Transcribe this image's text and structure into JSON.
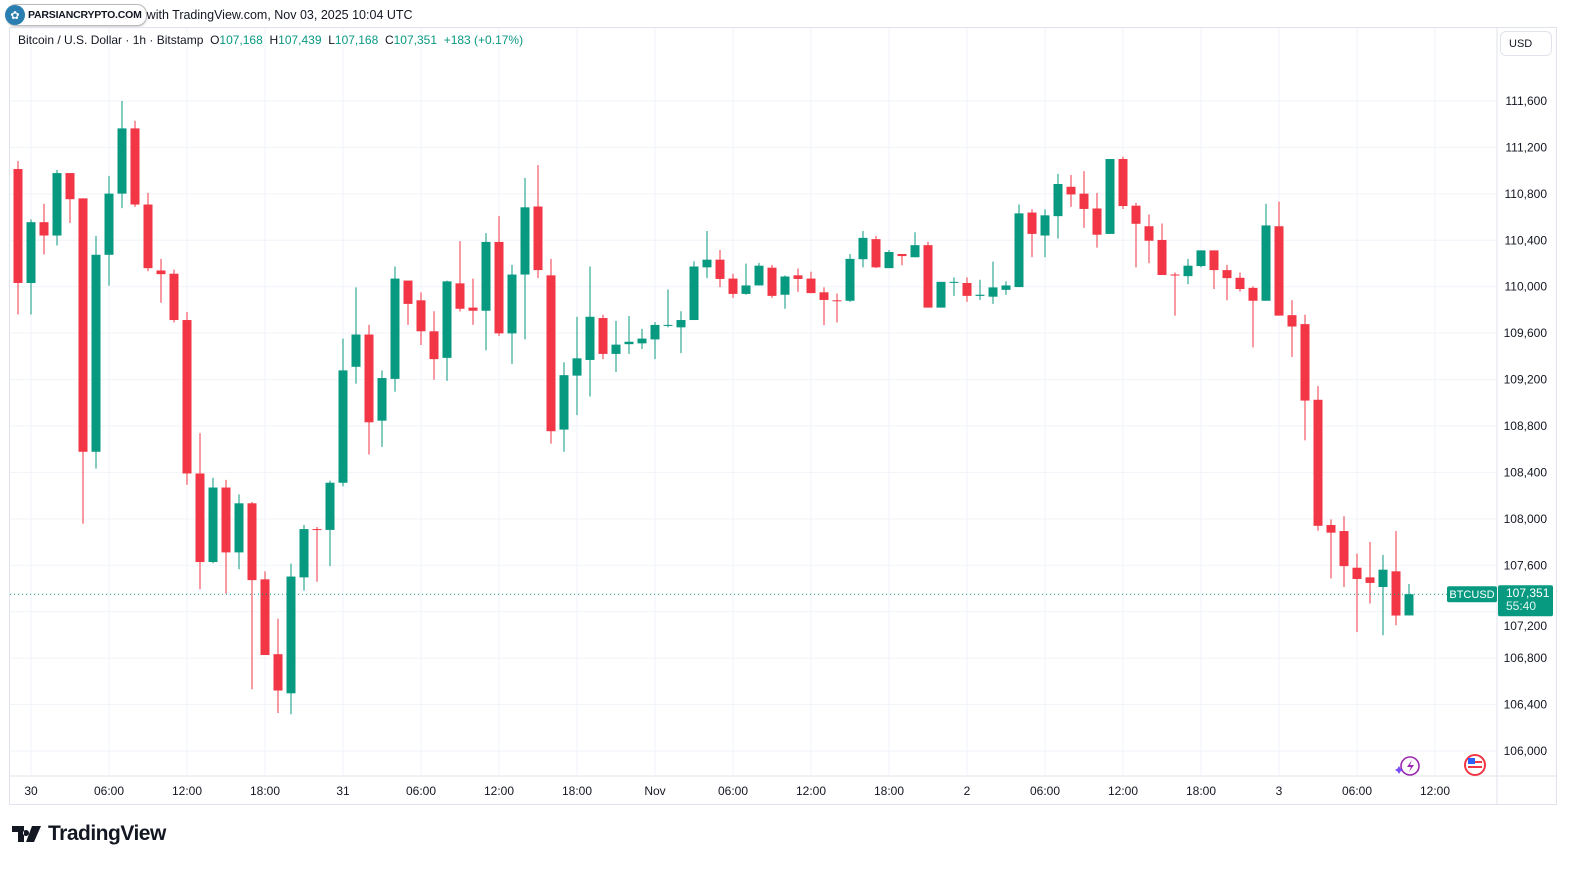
{
  "header": {
    "logo_text": "PARSIANCRYPTO.COM",
    "published_text": "with TradingView.com, Nov 03, 2025 10:04 UTC"
  },
  "legend": {
    "symbol": "Bitcoin / U.S. Dollar · 1h · Bitstamp",
    "open_label": "O",
    "open": "107,168",
    "high_label": "H",
    "high": "107,439",
    "low_label": "L",
    "low": "107,168",
    "close_label": "C",
    "close": "107,351",
    "change": "+183 (+0.17%)"
  },
  "currency_button": "USD",
  "price_tag": {
    "symbol": "BTCUSD",
    "price": "107,351",
    "countdown": "55:40"
  },
  "footer": {
    "brand": "TradingView"
  },
  "icons": [
    "tradingview-logo-icon",
    "lightning-icon",
    "us-flag-icon"
  ],
  "colors": {
    "up": "#089981",
    "down": "#F23645",
    "grid": "#f0f3fa",
    "text": "#131722"
  },
  "chart_data": {
    "type": "candlestick",
    "interval": "1h",
    "ylim": [
      106000,
      111600
    ],
    "y_ticks": [
      "106,000",
      "106,400",
      "106,800",
      "107,200",
      "107,600",
      "108,000",
      "108,400",
      "108,800",
      "109,200",
      "109,600",
      "110,000",
      "110,400",
      "110,800",
      "111,200",
      "111,600"
    ],
    "x_ticks": [
      "30",
      "06:00",
      "12:00",
      "18:00",
      "31",
      "06:00",
      "12:00",
      "18:00",
      "Nov",
      "06:00",
      "12:00",
      "18:00",
      "2",
      "06:00",
      "12:00",
      "18:00",
      "3",
      "06:00",
      "12:00"
    ],
    "grid": true,
    "last_price": 107351,
    "ohlc_columns": [
      "open",
      "high",
      "low",
      "close"
    ],
    "ohlc": [
      [
        111014,
        111083,
        109761,
        110032
      ],
      [
        110032,
        110580,
        109761,
        110556
      ],
      [
        110556,
        110715,
        110278,
        110441
      ],
      [
        110441,
        111007,
        110355,
        110979
      ],
      [
        110979,
        110979,
        110549,
        110754
      ],
      [
        110761,
        110761,
        107958,
        108578
      ],
      [
        108578,
        110438,
        108433,
        110275
      ],
      [
        110275,
        110955,
        110008,
        110802
      ],
      [
        110802,
        111600,
        110677,
        111364
      ],
      [
        111364,
        111430,
        110688,
        110708
      ],
      [
        110708,
        110809,
        110133,
        110160
      ],
      [
        110140,
        110240,
        109862,
        110108
      ],
      [
        110112,
        110147,
        109692,
        109713
      ],
      [
        109713,
        109782,
        108294,
        108391
      ],
      [
        108391,
        108738,
        107392,
        107628
      ],
      [
        107628,
        108353,
        107618,
        108270
      ],
      [
        108270,
        108336,
        107357,
        107711
      ],
      [
        107711,
        108211,
        107566,
        108134
      ],
      [
        108134,
        108145,
        106532,
        107472
      ],
      [
        107479,
        107548,
        106827,
        106827
      ],
      [
        106834,
        107139,
        106327,
        106521
      ],
      [
        106497,
        107614,
        106317,
        107503
      ],
      [
        107496,
        107947,
        107382,
        107912
      ],
      [
        107912,
        107930,
        107458,
        107905
      ],
      [
        107905,
        108329,
        107593,
        108311
      ],
      [
        108311,
        109553,
        108280,
        109279
      ],
      [
        109310,
        109994,
        109165,
        109588
      ],
      [
        109588,
        109671,
        108554,
        108832
      ],
      [
        108846,
        109279,
        108620,
        109213
      ],
      [
        109206,
        110174,
        109095,
        110070
      ],
      [
        110053,
        110053,
        109671,
        109852
      ],
      [
        109883,
        109952,
        109498,
        109616
      ],
      [
        109616,
        109789,
        109199,
        109376
      ],
      [
        109387,
        110053,
        109189,
        110046
      ],
      [
        110029,
        110393,
        109786,
        109810
      ],
      [
        109820,
        110070,
        109671,
        109793
      ],
      [
        109793,
        110462,
        109453,
        110386
      ],
      [
        110386,
        110608,
        109574,
        109598
      ],
      [
        109598,
        110188,
        109335,
        110105
      ],
      [
        110105,
        110937,
        109546,
        110684
      ],
      [
        110691,
        111048,
        110074,
        110143
      ],
      [
        110098,
        110240,
        108648,
        108755
      ],
      [
        108769,
        109349,
        108578,
        109238
      ],
      [
        109234,
        109741,
        108894,
        109383
      ],
      [
        109369,
        110174,
        109054,
        109741
      ],
      [
        109730,
        109758,
        109376,
        109421
      ],
      [
        109421,
        109706,
        109265,
        109501
      ],
      [
        109505,
        109748,
        109421,
        109526
      ],
      [
        109512,
        109637,
        109463,
        109553
      ],
      [
        109546,
        109696,
        109376,
        109671
      ],
      [
        109664,
        109976,
        109650,
        109671
      ],
      [
        109650,
        109789,
        109428,
        109713
      ],
      [
        109713,
        110219,
        109713,
        110174
      ],
      [
        110167,
        110480,
        110074,
        110233
      ],
      [
        110233,
        110316,
        109997,
        110067
      ],
      [
        110070,
        110112,
        109904,
        109938
      ],
      [
        109938,
        110199,
        109931,
        110011
      ],
      [
        110011,
        110205,
        110011,
        110181
      ],
      [
        110164,
        110188,
        109904,
        109921
      ],
      [
        109931,
        110098,
        109810,
        110088
      ],
      [
        110098,
        110157,
        109956,
        110067
      ],
      [
        110070,
        110129,
        109945,
        109945
      ],
      [
        109952,
        109994,
        109668,
        109886
      ],
      [
        109883,
        109942,
        109692,
        109879
      ],
      [
        109879,
        110282,
        109869,
        110240
      ],
      [
        110237,
        110480,
        110167,
        110421
      ],
      [
        110410,
        110438,
        110160,
        110167
      ],
      [
        110160,
        110316,
        110160,
        110299
      ],
      [
        110282,
        110282,
        110185,
        110264
      ],
      [
        110254,
        110469,
        110254,
        110358
      ],
      [
        110358,
        110386,
        109820,
        109820
      ],
      [
        109820,
        110042,
        109820,
        110042
      ],
      [
        110039,
        110081,
        109921,
        110042
      ],
      [
        110032,
        110081,
        109869,
        109921
      ],
      [
        109921,
        110060,
        109886,
        109931
      ],
      [
        109914,
        110216,
        109852,
        109994
      ],
      [
        109973,
        110046,
        109931,
        110011
      ],
      [
        109997,
        110708,
        109997,
        110632
      ],
      [
        110639,
        110667,
        110254,
        110455
      ],
      [
        110441,
        110667,
        110254,
        110615
      ],
      [
        110608,
        110972,
        110414,
        110885
      ],
      [
        110861,
        110962,
        110688,
        110795
      ],
      [
        110802,
        110996,
        110507,
        110670
      ],
      [
        110674,
        110809,
        110337,
        110448
      ],
      [
        110455,
        111100,
        110455,
        111100
      ],
      [
        111100,
        111121,
        110670,
        110695
      ],
      [
        110698,
        110722,
        110167,
        110542
      ],
      [
        110521,
        110622,
        110202,
        110396
      ],
      [
        110403,
        110545,
        110101,
        110101
      ],
      [
        110105,
        110122,
        109751,
        110101
      ],
      [
        110091,
        110240,
        110022,
        110181
      ],
      [
        110178,
        110313,
        110167,
        110313
      ],
      [
        110313,
        110313,
        109980,
        110143
      ],
      [
        110143,
        110188,
        109883,
        110074
      ],
      [
        110077,
        110122,
        109959,
        109980
      ],
      [
        109990,
        110004,
        109477,
        109879
      ],
      [
        109879,
        110715,
        109879,
        110528
      ],
      [
        110521,
        110733,
        109751,
        109751
      ],
      [
        109755,
        109883,
        109394,
        109657
      ],
      [
        109678,
        109758,
        108676,
        109019
      ],
      [
        109026,
        109144,
        107898,
        107940
      ],
      [
        107947,
        107996,
        107486,
        107881
      ],
      [
        107895,
        108023,
        107413,
        107593
      ],
      [
        107579,
        107701,
        107024,
        107482
      ],
      [
        107496,
        107801,
        107271,
        107448
      ],
      [
        107413,
        107690,
        106997,
        107562
      ],
      [
        107548,
        107895,
        107083,
        107167
      ],
      [
        107168,
        107439,
        107168,
        107351
      ]
    ]
  }
}
